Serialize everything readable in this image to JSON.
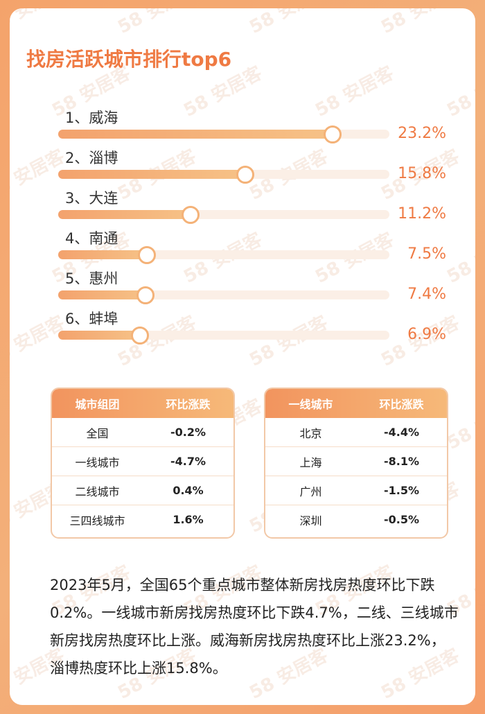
{
  "title": "找房活跃城市排行top6",
  "watermark": "58 安居客",
  "chart_data": {
    "type": "bar",
    "orientation": "horizontal",
    "title": "找房活跃城市排行top6",
    "categories": [
      "1、威海",
      "2、淄博",
      "3、大连",
      "4、南通",
      "5、惠州",
      "6、蚌埠"
    ],
    "values": [
      23.2,
      15.8,
      11.2,
      7.5,
      7.4,
      6.9
    ],
    "value_labels": [
      "23.2%",
      "15.8%",
      "11.2%",
      "7.5%",
      "7.4%",
      "6.9%"
    ],
    "xlim": [
      0,
      28
    ],
    "colors": {
      "fill": "#f3a26d",
      "track": "#fbefe6",
      "value_text": "#ef7a43"
    }
  },
  "table_groups": {
    "headers": [
      "城市组团",
      "环比涨跌"
    ],
    "rows": [
      [
        "全国",
        "-0.2%"
      ],
      [
        "一线城市",
        "-4.7%"
      ],
      [
        "二线城市",
        "0.4%"
      ],
      [
        "三四线城市",
        "1.6%"
      ]
    ]
  },
  "table_tier1": {
    "headers": [
      "一线城市",
      "环比涨跌"
    ],
    "rows": [
      [
        "北京",
        "-4.4%"
      ],
      [
        "上海",
        "-8.1%"
      ],
      [
        "广州",
        "-1.5%"
      ],
      [
        "深圳",
        "-0.5%"
      ]
    ]
  },
  "summary": "2023年5月，全国65个重点城市整体新房找房热度环比下跌0.2%。一线城市新房找房热度环比下跌4.7%，二线、三线城市新房找房热度环比上涨。威海新房找房热度环比上涨23.2%，淄博热度环比上涨15.8%。",
  "colors": {
    "accent": "#ef7a43",
    "background": "#f4a36b"
  }
}
